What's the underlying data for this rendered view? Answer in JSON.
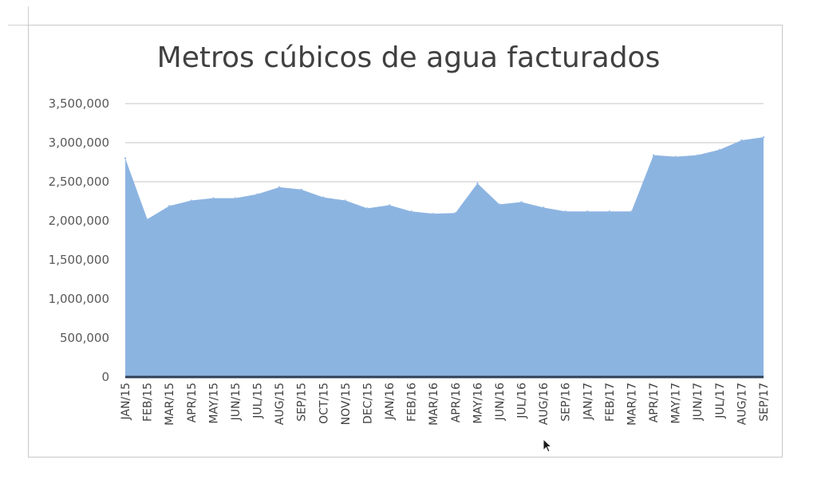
{
  "chart_data": {
    "type": "area",
    "title": "Metros cúbicos de agua facturados",
    "xlabel": "",
    "ylabel": "",
    "ylim": [
      0,
      3500000
    ],
    "yticks": [
      0,
      500000,
      1000000,
      1500000,
      2000000,
      2500000,
      3000000,
      3500000
    ],
    "ytick_labels": [
      "0",
      "500,000",
      "1,000,000",
      "1,500,000",
      "2,000,000",
      "2,500,000",
      "3,000,000",
      "3,500,000"
    ],
    "grid": true,
    "legend": "none",
    "colors": {
      "area_fill": "#8cb4e1",
      "area_line": "#9bbde6",
      "baseline": "#2f3f55",
      "grid": "#d9d9d9"
    },
    "categories": [
      "JAN/15",
      "FEB/15",
      "MAR/15",
      "APR/15",
      "MAY/15",
      "JUN/15",
      "JUL/15",
      "AUG/15",
      "SEP/15",
      "OCT/15",
      "NOV/15",
      "DEC/15",
      "JAN/16",
      "FEB/16",
      "MAR/16",
      "APR/16",
      "MAY/16",
      "JUN/16",
      "JUL/16",
      "AUG/16",
      "SEP/16",
      "JAN/17",
      "FEB/17",
      "MAR/17",
      "APR/17",
      "MAY/17",
      "JUN/17",
      "JUL/17",
      "AUG/17",
      "SEP/17"
    ],
    "values": [
      2800000,
      2020000,
      2190000,
      2260000,
      2290000,
      2290000,
      2340000,
      2430000,
      2400000,
      2300000,
      2260000,
      2160000,
      2200000,
      2120000,
      2090000,
      2100000,
      2480000,
      2210000,
      2240000,
      2170000,
      2120000,
      2120000,
      2120000,
      2120000,
      2840000,
      2820000,
      2840000,
      2910000,
      3030000,
      3070000
    ]
  }
}
